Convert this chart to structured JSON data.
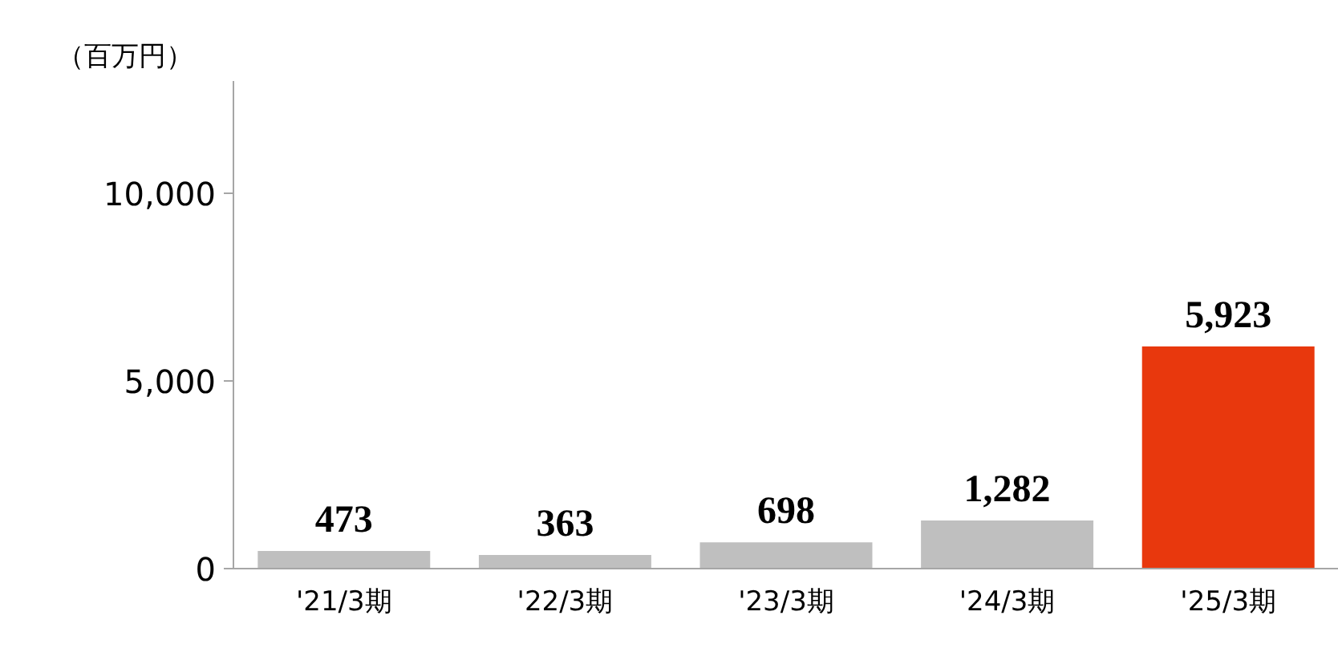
{
  "chart_data": {
    "type": "bar",
    "ylabel": "（百万円）",
    "categories": [
      "'21/3期",
      "'22/3期",
      "'23/3期",
      "'24/3期",
      "'25/3期"
    ],
    "values": [
      473,
      363,
      698,
      1282,
      5923
    ],
    "colors": [
      "#bfbfbf",
      "#bfbfbf",
      "#bfbfbf",
      "#bfbfbf",
      "#e8380d"
    ],
    "ylim": [
      0,
      13000
    ],
    "yticks": [
      0,
      {
        "value": 5000,
        "label": "5,000"
      },
      {
        "value": 10000,
        "label": "10,000"
      }
    ],
    "value_labels": [
      "473",
      "363",
      "698",
      "1,282",
      "5,923"
    ],
    "grid": false
  }
}
